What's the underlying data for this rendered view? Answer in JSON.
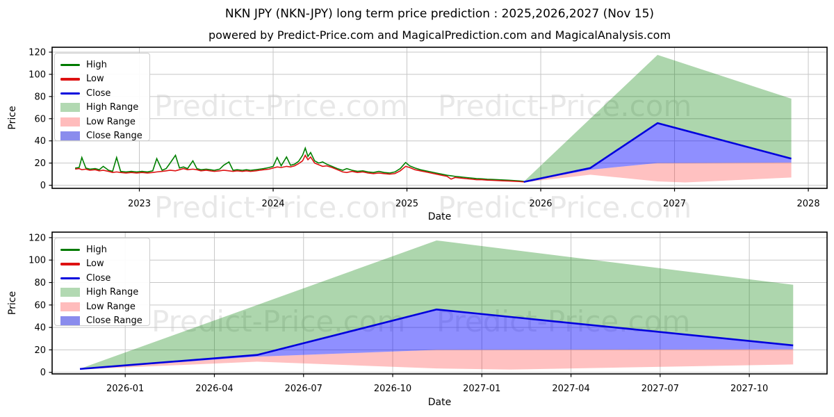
{
  "title": "NKN JPY (NKN-JPY) long term price prediction : 2025,2026,2027 (Nov 15)",
  "subtitle": "powered by Predict-Price.com and MagicalPrediction.com and MagicalAnalysis.com",
  "watermark": {
    "text": "Predict-Price.com",
    "color": "rgba(0,0,0,0.09)"
  },
  "colors": {
    "high_line": "#008000",
    "low_line": "#dd1111",
    "close_line": "#0000dd",
    "high_range_fill": "#008000",
    "low_range_fill": "#ff2020",
    "close_range_fill": "#0000ff",
    "grid": "#c6c6c6",
    "spine": "#000000"
  },
  "legend": {
    "items": [
      {
        "label": "High",
        "type": "line",
        "color": "#007a00"
      },
      {
        "label": "Low",
        "type": "line",
        "color": "#dd1111"
      },
      {
        "label": "Close",
        "type": "line",
        "color": "#0000dd"
      },
      {
        "label": "High Range",
        "type": "patch",
        "color": "#b2d9b2"
      },
      {
        "label": "Low Range",
        "type": "patch",
        "color": "#ffbcbc"
      },
      {
        "label": "Close Range",
        "type": "patch",
        "color": "#8a8ced"
      }
    ]
  },
  "chart_data": [
    {
      "type": "line",
      "name": "long-term-history-and-prediction",
      "xlabel": "Date",
      "ylabel": "Price",
      "xlim": [
        2022.348,
        2028.14
      ],
      "ylim": [
        -2.8,
        124.4
      ],
      "grid": true,
      "legend_position": "upper-left",
      "xticks": {
        "values": [
          2023,
          2024,
          2025,
          2026,
          2027,
          2028
        ],
        "labels": [
          "2023",
          "2024",
          "2025",
          "2026",
          "2027",
          "2028"
        ]
      },
      "yticks": {
        "values": [
          0,
          20,
          40,
          60,
          80,
          100,
          120
        ],
        "labels": [
          "0",
          "20",
          "40",
          "60",
          "80",
          "100",
          "120"
        ]
      },
      "historical": {
        "note": "columns: [decimal_year, low, high]; Low(red) overlaps High(green), green spikes visible",
        "points": [
          [
            2022.52,
            14.5,
            15.5
          ],
          [
            2022.55,
            15.0,
            16.0
          ],
          [
            2022.57,
            14.0,
            25.0
          ],
          [
            2022.6,
            14.5,
            15.5
          ],
          [
            2022.63,
            13.5,
            14.5
          ],
          [
            2022.67,
            14.0,
            15.0
          ],
          [
            2022.7,
            13.0,
            14.0
          ],
          [
            2022.73,
            13.5,
            17.0
          ],
          [
            2022.77,
            12.5,
            13.5
          ],
          [
            2022.8,
            11.5,
            12.5
          ],
          [
            2022.83,
            12.0,
            25.0
          ],
          [
            2022.86,
            11.5,
            12.5
          ],
          [
            2022.9,
            11.0,
            12.0
          ],
          [
            2022.94,
            11.5,
            12.5
          ],
          [
            2022.98,
            11.0,
            12.0
          ],
          [
            2023.02,
            11.5,
            12.5
          ],
          [
            2023.06,
            11.0,
            12.0
          ],
          [
            2023.1,
            11.5,
            13.0
          ],
          [
            2023.13,
            12.0,
            24.0
          ],
          [
            2023.17,
            12.5,
            13.5
          ],
          [
            2023.2,
            13.0,
            15.0
          ],
          [
            2023.23,
            13.5,
            20.0
          ],
          [
            2023.27,
            13.0,
            27.0
          ],
          [
            2023.3,
            14.0,
            15.5
          ],
          [
            2023.33,
            15.0,
            16.5
          ],
          [
            2023.36,
            14.0,
            15.0
          ],
          [
            2023.4,
            14.5,
            22.0
          ],
          [
            2023.43,
            14.0,
            15.0
          ],
          [
            2023.46,
            13.0,
            14.0
          ],
          [
            2023.5,
            13.5,
            14.5
          ],
          [
            2023.53,
            13.0,
            14.0
          ],
          [
            2023.56,
            12.5,
            13.5
          ],
          [
            2023.6,
            13.0,
            14.5
          ],
          [
            2023.63,
            13.5,
            18.0
          ],
          [
            2023.67,
            13.0,
            21.0
          ],
          [
            2023.7,
            12.5,
            13.5
          ],
          [
            2023.73,
            13.0,
            14.0
          ],
          [
            2023.77,
            12.5,
            13.5
          ],
          [
            2023.8,
            13.0,
            14.0
          ],
          [
            2023.83,
            12.5,
            13.5
          ],
          [
            2023.87,
            13.0,
            14.0
          ],
          [
            2023.9,
            13.5,
            14.5
          ],
          [
            2023.93,
            14.0,
            15.0
          ],
          [
            2023.97,
            14.5,
            16.0
          ],
          [
            2024.0,
            15.5,
            17.0
          ],
          [
            2024.03,
            16.5,
            25.0
          ],
          [
            2024.06,
            16.0,
            17.5
          ],
          [
            2024.1,
            17.0,
            25.5
          ],
          [
            2024.13,
            16.5,
            18.0
          ],
          [
            2024.16,
            17.5,
            19.0
          ],
          [
            2024.19,
            19.5,
            21.5
          ],
          [
            2024.22,
            22.0,
            27.0
          ],
          [
            2024.24,
            27.0,
            33.5
          ],
          [
            2024.26,
            23.0,
            26.0
          ],
          [
            2024.28,
            25.5,
            29.5
          ],
          [
            2024.31,
            20.0,
            22.0
          ],
          [
            2024.34,
            18.5,
            20.0
          ],
          [
            2024.37,
            17.0,
            21.0
          ],
          [
            2024.4,
            17.5,
            19.0
          ],
          [
            2024.44,
            16.0,
            17.0
          ],
          [
            2024.48,
            14.0,
            15.0
          ],
          [
            2024.52,
            12.0,
            13.5
          ],
          [
            2024.55,
            11.5,
            15.0
          ],
          [
            2024.59,
            12.5,
            13.5
          ],
          [
            2024.63,
            11.5,
            12.5
          ],
          [
            2024.67,
            12.0,
            13.0
          ],
          [
            2024.71,
            11.0,
            12.0
          ],
          [
            2024.75,
            10.5,
            11.5
          ],
          [
            2024.79,
            11.0,
            12.5
          ],
          [
            2024.83,
            10.5,
            11.5
          ],
          [
            2024.87,
            10.0,
            11.0
          ],
          [
            2024.91,
            10.5,
            12.0
          ],
          [
            2024.95,
            13.0,
            15.0
          ],
          [
            2024.99,
            17.0,
            20.5
          ],
          [
            2025.02,
            16.0,
            17.5
          ],
          [
            2025.06,
            14.0,
            15.5
          ],
          [
            2025.1,
            13.0,
            14.0
          ],
          [
            2025.14,
            12.0,
            13.0
          ],
          [
            2025.18,
            11.0,
            12.0
          ],
          [
            2025.22,
            10.0,
            11.0
          ],
          [
            2025.26,
            9.0,
            10.0
          ],
          [
            2025.3,
            8.0,
            9.0
          ],
          [
            2025.33,
            5.5,
            8.5
          ],
          [
            2025.36,
            7.0,
            8.0
          ],
          [
            2025.4,
            6.5,
            7.5
          ],
          [
            2025.44,
            6.0,
            7.0
          ],
          [
            2025.48,
            5.5,
            6.5
          ],
          [
            2025.52,
            5.0,
            6.0
          ],
          [
            2025.56,
            5.0,
            5.8
          ],
          [
            2025.6,
            4.6,
            5.4
          ],
          [
            2025.64,
            4.4,
            5.2
          ],
          [
            2025.68,
            4.2,
            5.0
          ],
          [
            2025.72,
            4.0,
            4.8
          ],
          [
            2025.76,
            3.8,
            4.5
          ],
          [
            2025.8,
            3.6,
            4.2
          ],
          [
            2025.84,
            3.3,
            3.9
          ],
          [
            2025.873,
            3.0,
            3.5
          ]
        ]
      },
      "prediction": {
        "note": "forecast fan starting Nov 15 2025; x in decimal years",
        "x": [
          2025.873,
          2026.37,
          2026.873,
          2027.873
        ],
        "high": [
          3.2,
          60,
          117.5,
          78
        ],
        "close": [
          3.0,
          15.5,
          56,
          24
        ],
        "close_min": [
          2.8,
          14,
          20,
          20.5
        ],
        "low_x": [
          2025.873,
          2026.37,
          2026.873,
          2027.08,
          2027.873
        ],
        "low": [
          2.6,
          9.5,
          3.5,
          2.5,
          7
        ]
      }
    },
    {
      "type": "line",
      "name": "prediction-detail",
      "xlabel": "Date",
      "ylabel": "Price",
      "xlim": [
        2025.795,
        2027.968
      ],
      "ylim": [
        -1.4,
        124.9
      ],
      "grid": true,
      "legend_position": "upper-left",
      "xticks": {
        "values": [
          2026.0,
          2026.25,
          2026.5,
          2026.75,
          2027.0,
          2027.25,
          2027.5,
          2027.75
        ],
        "labels": [
          "2026-01",
          "2026-04",
          "2026-07",
          "2026-10",
          "2027-01",
          "2027-04",
          "2027-07",
          "2027-10"
        ]
      },
      "yticks": {
        "values": [
          0,
          20,
          40,
          60,
          80,
          100,
          120
        ],
        "labels": [
          "0",
          "20",
          "40",
          "60",
          "80",
          "100",
          "120"
        ]
      },
      "prediction": {
        "x": [
          2025.873,
          2026.37,
          2026.873,
          2027.873
        ],
        "high": [
          3.2,
          60,
          117.5,
          78
        ],
        "close": [
          3.0,
          15.5,
          56,
          24
        ],
        "close_min": [
          2.8,
          14,
          20,
          20.5
        ],
        "low_x": [
          2025.873,
          2026.37,
          2026.873,
          2027.08,
          2027.873
        ],
        "low": [
          2.6,
          9.5,
          3.5,
          2.5,
          7
        ]
      }
    }
  ]
}
